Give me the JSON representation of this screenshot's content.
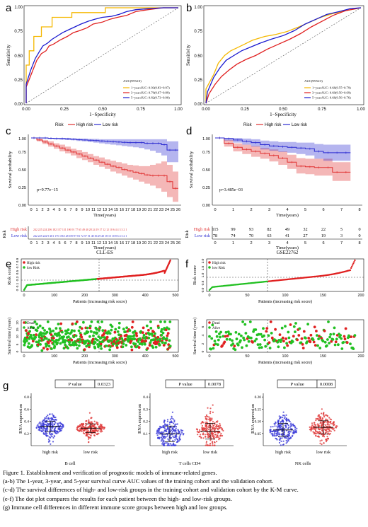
{
  "panels": {
    "a": {
      "letter": "a",
      "ylabel": "Sensitivity",
      "xlabel": "1−Specificity",
      "xticks": [
        "0.00",
        "0.25",
        "0.50",
        "0.75",
        "1.00"
      ],
      "yticks": [
        "0.00",
        "0.25",
        "0.50",
        "0.75",
        "1.00"
      ],
      "legend_title": "AUC(95%CI)",
      "legend": [
        "1−yearAUC: 0.93(0.83−0.97)",
        "3−yearAUC: 0.79(0.67−0.89)",
        "5−yearAUC: 0.82(0.73−0.90)"
      ]
    },
    "b": {
      "letter": "b",
      "ylabel": "Sensitivity",
      "xlabel": "1−Specificity",
      "xticks": [
        "0.00",
        "0.25",
        "0.50",
        "0.75",
        "1.00"
      ],
      "yticks": [
        "0.00",
        "0.25",
        "0.50",
        "0.75",
        "1.00"
      ],
      "legend_title": "AUC(95%CI)",
      "legend": [
        "1−yearAUC: 0.66(0.55−0.79)",
        "3−yearAUC: 0.60(0.50−0.69)",
        "5−yearAUC: 0.66(0.56−0.76)"
      ]
    },
    "c": {
      "letter": "c",
      "legend_title": "Risk",
      "legend": [
        "High risk",
        "Low risk"
      ],
      "ylabel": "Survival probability",
      "xlabel": "Time(years)",
      "pvalue": "p=9.77e−15",
      "yticks": [
        "0.00",
        "0.25",
        "0.50",
        "0.75",
        "1.00"
      ],
      "risk_table_title": "Risk",
      "risk_rows": [
        "High risk",
        "Low risk"
      ],
      "cohort": "CLL-ES"
    },
    "d": {
      "letter": "d",
      "legend_title": "Risk",
      "legend": [
        "High risk",
        "Low risk"
      ],
      "ylabel": "Survival probability",
      "xlabel": "Time(years)",
      "pvalue": "p=3.485e−03",
      "yticks": [
        "0.00",
        "0.25",
        "0.50",
        "0.75",
        "1.00"
      ],
      "risk_table_title": "Risk",
      "risk_rows": [
        "High risk",
        "Low risk"
      ],
      "risk_high": [
        "115",
        "99",
        "93",
        "82",
        "49",
        "32",
        "22",
        "5",
        "0"
      ],
      "risk_low": [
        "78",
        "74",
        "70",
        "63",
        "41",
        "27",
        "19",
        "3",
        "0"
      ],
      "cohort": "GSE22762"
    },
    "e": {
      "letter": "e",
      "score_ylabel": "Risk score",
      "score_legend": [
        "High risk",
        "low Risk"
      ],
      "score_yticks": [
        "0",
        "0.1",
        "0.3",
        "0.5",
        "0.7",
        "0.9"
      ],
      "time_ylabel": "Survival time (years)",
      "time_legend": [
        "Dead",
        "Alive"
      ],
      "time_yticks": [
        "0",
        "5",
        "10",
        "15",
        "20"
      ],
      "xticks": [
        "0",
        "100",
        "200",
        "300",
        "400",
        "500"
      ],
      "xlabel": "Patients (increasing risk socre)"
    },
    "f": {
      "letter": "f",
      "score_ylabel": "Risk score",
      "score_legend": [
        "High risk",
        "low Risk"
      ],
      "score_yticks": [
        "0.0",
        "0.5",
        "1.0",
        "1.5",
        "2.0"
      ],
      "time_ylabel": "Survival time (years)",
      "time_legend": [
        "Dead",
        "Alive"
      ],
      "time_yticks": [
        "0",
        "2",
        "4",
        "6"
      ],
      "xticks": [
        "0",
        "50",
        "100",
        "150",
        "200"
      ],
      "xlabel": "Patients (increasing risk socre)"
    },
    "g": {
      "letter": "g",
      "ylabel": "RNA expression",
      "pvalue_label": "P value",
      "subplots": [
        {
          "pvalue": "0.0323",
          "title": "B cell",
          "yticks": [
            "0.2",
            "0.4",
            "0.6",
            "0.8"
          ]
        },
        {
          "pvalue": "0.0078",
          "title": "T cells CD4",
          "yticks": [
            "0.1",
            "0.2",
            "0.3",
            "0.4"
          ]
        },
        {
          "pvalue": "0.0008",
          "title": "NK cells",
          "yticks": [
            "0.05",
            "0.10",
            "0.15",
            "0.20"
          ]
        }
      ],
      "groups": [
        "high risk",
        "low risk"
      ]
    }
  },
  "chart_data": [
    {
      "panel": "a",
      "type": "line",
      "xlabel": "1−Specificity",
      "ylabel": "Sensitivity",
      "xlim": [
        0,
        1
      ],
      "ylim": [
        0,
        1
      ],
      "series": [
        {
          "name": "1−yearAUC: 0.93(0.83−0.97)",
          "color": "#f5b800",
          "x": [
            0,
            0,
            0.02,
            0.02,
            0.05,
            0.05,
            0.1,
            0.1,
            0.17,
            0.17,
            0.3,
            0.3,
            0.52,
            0.52,
            0.67,
            0.67,
            1
          ],
          "y": [
            0,
            0.4,
            0.4,
            0.55,
            0.55,
            0.7,
            0.7,
            0.8,
            0.8,
            0.9,
            0.9,
            0.95,
            0.95,
            1,
            1,
            1,
            1
          ]
        },
        {
          "name": "3−yearAUC: 0.79(0.67−0.89)",
          "color": "#e02020",
          "x": [
            0,
            0,
            0.04,
            0.07,
            0.1,
            0.13,
            0.15,
            0.18,
            0.22,
            0.27,
            0.31,
            0.35,
            0.4,
            0.44,
            0.5,
            0.55,
            0.6,
            0.66,
            0.72,
            0.8,
            0.9,
            1
          ],
          "y": [
            0,
            0.17,
            0.33,
            0.45,
            0.52,
            0.55,
            0.6,
            0.62,
            0.66,
            0.7,
            0.74,
            0.76,
            0.79,
            0.83,
            0.85,
            0.88,
            0.9,
            0.92,
            0.96,
            0.98,
            1,
            1
          ]
        },
        {
          "name": "5−yearAUC: 0.82(0.73−0.90)",
          "color": "#1a1ad0",
          "x": [
            0,
            0,
            0.03,
            0.06,
            0.09,
            0.11,
            0.14,
            0.17,
            0.2,
            0.24,
            0.28,
            0.32,
            0.36,
            0.41,
            0.45,
            0.5,
            0.56,
            0.61,
            0.66,
            0.72,
            0.8,
            0.9,
            1
          ],
          "y": [
            0,
            0.2,
            0.35,
            0.47,
            0.55,
            0.6,
            0.63,
            0.67,
            0.7,
            0.74,
            0.77,
            0.8,
            0.83,
            0.86,
            0.88,
            0.9,
            0.91,
            0.93,
            0.96,
            0.98,
            0.99,
            1,
            1
          ]
        }
      ]
    },
    {
      "panel": "b",
      "type": "line",
      "xlabel": "1−Specificity",
      "ylabel": "Sensitivity",
      "xlim": [
        0,
        1
      ],
      "ylim": [
        0,
        1
      ],
      "series": [
        {
          "name": "1−yearAUC: 0.66(0.55−0.79)",
          "color": "#f5b800",
          "x": [
            0,
            0,
            0.05,
            0.08,
            0.12,
            0.16,
            0.2,
            0.25,
            0.3,
            0.38,
            0.45,
            0.52,
            0.6,
            0.67,
            0.74,
            0.82,
            0.9,
            1
          ],
          "y": [
            0,
            0.15,
            0.3,
            0.42,
            0.5,
            0.55,
            0.58,
            0.62,
            0.66,
            0.7,
            0.72,
            0.75,
            0.8,
            0.85,
            0.9,
            0.94,
            0.97,
            1
          ]
        },
        {
          "name": "3−yearAUC: 0.60(0.50−0.69)",
          "color": "#e02020",
          "x": [
            0,
            0.02,
            0.06,
            0.1,
            0.15,
            0.2,
            0.26,
            0.32,
            0.4,
            0.47,
            0.54,
            0.61,
            0.68,
            0.75,
            0.82,
            0.9,
            1
          ],
          "y": [
            0,
            0.1,
            0.2,
            0.28,
            0.35,
            0.41,
            0.46,
            0.5,
            0.57,
            0.62,
            0.67,
            0.73,
            0.8,
            0.86,
            0.92,
            0.97,
            1
          ]
        },
        {
          "name": "5−yearAUC: 0.66(0.56−0.76)",
          "color": "#1a1ad0",
          "x": [
            0,
            0.01,
            0.05,
            0.09,
            0.13,
            0.18,
            0.23,
            0.29,
            0.35,
            0.42,
            0.5,
            0.57,
            0.64,
            0.71,
            0.78,
            0.86,
            0.93,
            1
          ],
          "y": [
            0,
            0.12,
            0.27,
            0.37,
            0.45,
            0.5,
            0.55,
            0.59,
            0.63,
            0.67,
            0.71,
            0.76,
            0.83,
            0.88,
            0.93,
            0.96,
            0.99,
            1
          ]
        }
      ]
    },
    {
      "panel": "c",
      "type": "line",
      "title": "CLL-ES",
      "xlabel": "Time(years)",
      "ylabel": "Survival probability",
      "xlim": [
        0,
        26
      ],
      "ylim": [
        0,
        1
      ],
      "x_ticks": [
        0,
        1,
        2,
        3,
        4,
        5,
        6,
        7,
        8,
        9,
        10,
        11,
        12,
        13,
        14,
        15,
        16,
        17,
        18,
        19,
        20,
        21,
        22,
        23,
        24,
        25,
        26
      ],
      "series": [
        {
          "name": "High risk",
          "color": "#e03030",
          "x": [
            0,
            1,
            2,
            3,
            4,
            5,
            6,
            7,
            8,
            9,
            10,
            11,
            12,
            13,
            14,
            15,
            16,
            17,
            18,
            19,
            20,
            21,
            22,
            23,
            24,
            25,
            26
          ],
          "y": [
            1,
            0.97,
            0.94,
            0.91,
            0.88,
            0.85,
            0.82,
            0.79,
            0.76,
            0.73,
            0.7,
            0.67,
            0.64,
            0.61,
            0.58,
            0.56,
            0.53,
            0.51,
            0.49,
            0.47,
            0.45,
            0.44,
            0.44,
            0.44,
            0.35,
            0.25,
            0.25
          ],
          "lower": [
            1,
            0.95,
            0.91,
            0.87,
            0.84,
            0.8,
            0.77,
            0.74,
            0.7,
            0.67,
            0.64,
            0.6,
            0.57,
            0.54,
            0.5,
            0.47,
            0.44,
            0.41,
            0.38,
            0.35,
            0.32,
            0.29,
            0.25,
            0.2,
            0.12,
            0.05,
            0.05
          ],
          "upper": [
            1,
            0.99,
            0.97,
            0.95,
            0.92,
            0.9,
            0.87,
            0.84,
            0.82,
            0.79,
            0.76,
            0.73,
            0.71,
            0.68,
            0.66,
            0.64,
            0.62,
            0.6,
            0.59,
            0.58,
            0.58,
            0.6,
            0.62,
            0.65,
            0.6,
            0.5,
            0.5
          ]
        },
        {
          "name": "Low risk",
          "color": "#2a2ad0",
          "x": [
            0,
            1,
            2,
            3,
            4,
            5,
            6,
            7,
            8,
            9,
            10,
            11,
            12,
            13,
            14,
            15,
            16,
            17,
            18,
            19,
            20,
            21,
            22,
            23,
            24,
            25,
            26
          ],
          "y": [
            1,
            1,
            1,
            0.995,
            0.99,
            0.99,
            0.985,
            0.98,
            0.975,
            0.97,
            0.965,
            0.96,
            0.955,
            0.95,
            0.945,
            0.94,
            0.935,
            0.93,
            0.93,
            0.93,
            0.92,
            0.92,
            0.92,
            0.9,
            0.82,
            0.82,
            0.82
          ],
          "lower": [
            1,
            1,
            0.99,
            0.985,
            0.98,
            0.975,
            0.97,
            0.965,
            0.955,
            0.95,
            0.94,
            0.93,
            0.92,
            0.91,
            0.9,
            0.89,
            0.88,
            0.87,
            0.86,
            0.85,
            0.83,
            0.81,
            0.78,
            0.74,
            0.64,
            0.64,
            0.64
          ],
          "upper": [
            1,
            1,
            1,
            1,
            1,
            1,
            1,
            0.995,
            0.99,
            0.99,
            0.985,
            0.985,
            0.98,
            0.98,
            0.98,
            0.98,
            0.98,
            0.98,
            0.98,
            0.98,
            0.98,
            0.98,
            0.98,
            0.98,
            0.95,
            0.95,
            0.95
          ]
        }
      ]
    },
    {
      "panel": "d",
      "type": "line",
      "title": "GSE22762",
      "xlabel": "Time(years)",
      "ylabel": "Survival probability",
      "xlim": [
        0,
        8
      ],
      "ylim": [
        0,
        1
      ],
      "x_ticks": [
        0,
        1,
        2,
        3,
        4,
        5,
        6,
        7,
        8
      ],
      "series": [
        {
          "name": "High risk",
          "color": "#e03030",
          "x": [
            0,
            0.5,
            1,
            1.5,
            2,
            2.5,
            3,
            3.5,
            4,
            4.5,
            5,
            5.5,
            6,
            6.5,
            7,
            7.5
          ],
          "y": [
            1,
            0.92,
            0.86,
            0.83,
            0.8,
            0.77,
            0.74,
            0.7,
            0.64,
            0.58,
            0.57,
            0.56,
            0.56,
            0.49,
            0.49,
            0.49
          ],
          "lower": [
            1,
            0.87,
            0.8,
            0.76,
            0.72,
            0.69,
            0.65,
            0.6,
            0.54,
            0.47,
            0.46,
            0.44,
            0.44,
            0.36,
            0.36,
            0.36
          ],
          "upper": [
            1,
            0.97,
            0.92,
            0.9,
            0.88,
            0.85,
            0.83,
            0.8,
            0.75,
            0.7,
            0.69,
            0.69,
            0.69,
            0.64,
            0.64,
            0.64
          ]
        },
        {
          "name": "Low risk",
          "color": "#2a2ad0",
          "x": [
            0,
            0.5,
            1,
            1.5,
            2,
            2.5,
            3,
            3.5,
            4,
            4.5,
            5,
            5.5,
            6,
            6.5,
            7,
            7.5
          ],
          "y": [
            1,
            0.99,
            0.97,
            0.95,
            0.93,
            0.9,
            0.88,
            0.87,
            0.86,
            0.85,
            0.84,
            0.8,
            0.78,
            0.78,
            0.78,
            0.78
          ],
          "lower": [
            1,
            0.96,
            0.93,
            0.9,
            0.87,
            0.83,
            0.81,
            0.79,
            0.78,
            0.76,
            0.74,
            0.69,
            0.66,
            0.66,
            0.66,
            0.66
          ],
          "upper": [
            1,
            1,
            1,
            0.99,
            0.98,
            0.96,
            0.95,
            0.94,
            0.94,
            0.93,
            0.93,
            0.91,
            0.9,
            0.9,
            0.9,
            0.9
          ]
        }
      ]
    },
    {
      "panel": "e",
      "type": "scatter",
      "xlabel": "Patients (increasing risk socre)",
      "ylabel": "Risk score",
      "xlim": [
        0,
        500
      ],
      "cutoff_patient": 242,
      "cutoff_score": 0.32,
      "n_patients": 484,
      "score_min": 0.0,
      "score_max": 0.97,
      "note": "sorted risk scores; secondary scatter of survival time (0-20 years) with Dead/Alive status"
    },
    {
      "panel": "f",
      "type": "scatter",
      "xlabel": "Patients (increasing risk socre)",
      "ylabel": "Risk score",
      "xlim": [
        0,
        200
      ],
      "cutoff_patient": 78,
      "cutoff_score": 0.7,
      "n_patients": 193,
      "score_min": 0.0,
      "score_max": 2.0,
      "note": "sorted risk scores; secondary scatter of survival time (0-8 years) with Dead/Alive status"
    },
    {
      "panel": "g",
      "type": "scatter",
      "groups": [
        "high risk",
        "low risk"
      ],
      "series": [
        {
          "name": "B cell",
          "pvalue": 0.0323,
          "high_mean": 0.42,
          "high_sd": 0.06,
          "low_mean": 0.4,
          "low_sd": 0.05,
          "ylim": [
            0.2,
            0.8
          ]
        },
        {
          "name": "T cells CD4",
          "pvalue": 0.0078,
          "high_mean": 0.09,
          "high_sd": 0.06,
          "low_mean": 0.11,
          "low_sd": 0.06,
          "ylim": [
            0,
            0.4
          ]
        },
        {
          "name": "NK cells",
          "pvalue": 0.0008,
          "high_mean": 0.06,
          "high_sd": 0.025,
          "low_mean": 0.07,
          "low_sd": 0.025,
          "ylim": [
            0,
            0.2
          ]
        }
      ]
    }
  ],
  "caption": [
    "Figure 1. Establishment and verification of prognostic models of immune-related genes.",
    "(a-b) The 1-year, 3-year, and 5-year survival curve AUC values of the training cohort and the validation cohort.",
    "(c-d) The survival differences of high- and low-risk groups in the training cohort and validation cohort by the K-M curve.",
    "(e-f) The dot plot compares the results for each patient between the high- and low-risk groups.",
    "(g) Immune cell differences in different immune score groups between high and low groups."
  ]
}
